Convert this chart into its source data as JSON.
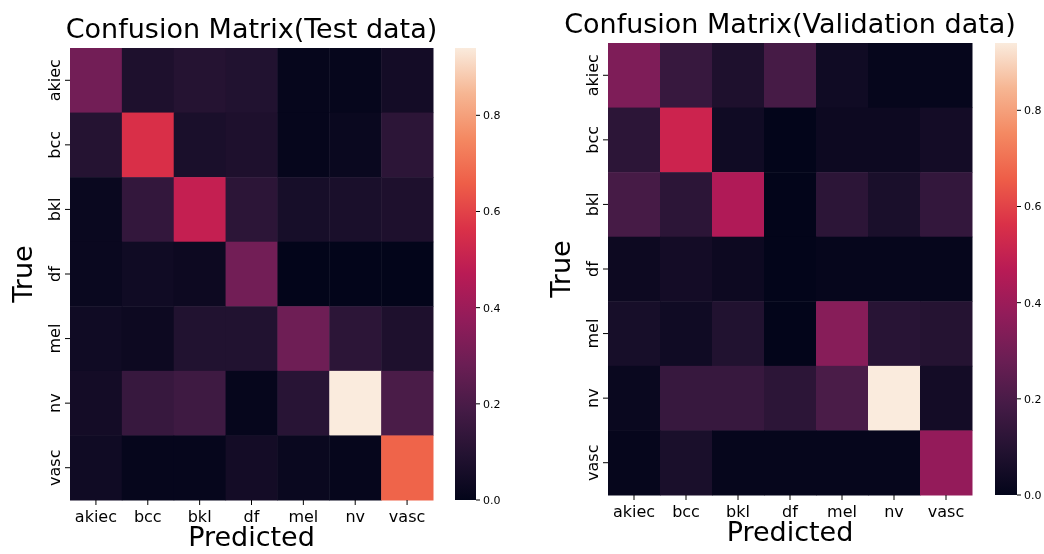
{
  "chart_data": [
    {
      "type": "heatmap",
      "title": "Confusion Matrix(Test data)",
      "xlabel": "Predicted",
      "ylabel": "True",
      "categories": [
        "akiec",
        "bcc",
        "bkl",
        "df",
        "mel",
        "nv",
        "vasc"
      ],
      "y_categories": [
        "akiec",
        "bcc",
        "bkl",
        "df",
        "mel",
        "nv",
        "vasc"
      ],
      "cells": [
        [
          0.3,
          0.08,
          0.1,
          0.09,
          0.01,
          0.01,
          0.05
        ],
        [
          0.1,
          0.56,
          0.07,
          0.08,
          0.01,
          0.02,
          0.12
        ],
        [
          0.02,
          0.14,
          0.5,
          0.12,
          0.06,
          0.07,
          0.08
        ],
        [
          0.02,
          0.04,
          0.03,
          0.3,
          0.0,
          0.0,
          0.0
        ],
        [
          0.04,
          0.03,
          0.09,
          0.09,
          0.29,
          0.12,
          0.08
        ],
        [
          0.05,
          0.15,
          0.17,
          0.01,
          0.11,
          0.94,
          0.2
        ],
        [
          0.04,
          0.01,
          0.01,
          0.05,
          0.02,
          0.01,
          0.67
        ]
      ],
      "clim": [
        0,
        0.94
      ],
      "cticks": [
        {
          "value": 0,
          "label": "0.0"
        },
        0.2,
        0.4,
        0.6,
        0.8
      ]
    },
    {
      "type": "heatmap",
      "title": "Confusion Matrix(Validation data)",
      "xlabel": "Predicted",
      "ylabel": "True",
      "categories": [
        "akiec",
        "bcc",
        "bkl",
        "df",
        "mel",
        "nv",
        "vasc"
      ],
      "y_categories": [
        "akiec",
        "bcc",
        "bkl",
        "df",
        "mel",
        "nv",
        "vasc"
      ],
      "cells": [
        [
          0.33,
          0.15,
          0.08,
          0.19,
          0.04,
          0.01,
          0.01
        ],
        [
          0.12,
          0.52,
          0.04,
          0.0,
          0.03,
          0.03,
          0.05
        ],
        [
          0.19,
          0.12,
          0.45,
          0.0,
          0.12,
          0.07,
          0.14
        ],
        [
          0.03,
          0.05,
          0.03,
          0.0,
          0.01,
          0.01,
          0.01
        ],
        [
          0.06,
          0.04,
          0.09,
          0.0,
          0.35,
          0.11,
          0.1
        ],
        [
          0.02,
          0.15,
          0.15,
          0.12,
          0.2,
          0.94,
          0.05
        ],
        [
          0.01,
          0.07,
          0.01,
          0.01,
          0.01,
          0.01,
          0.38
        ]
      ],
      "clim": [
        0,
        0.94
      ],
      "cticks": [
        {
          "value": 0,
          "label": "0.0"
        },
        0.2,
        0.4,
        0.6,
        0.8
      ]
    }
  ]
}
